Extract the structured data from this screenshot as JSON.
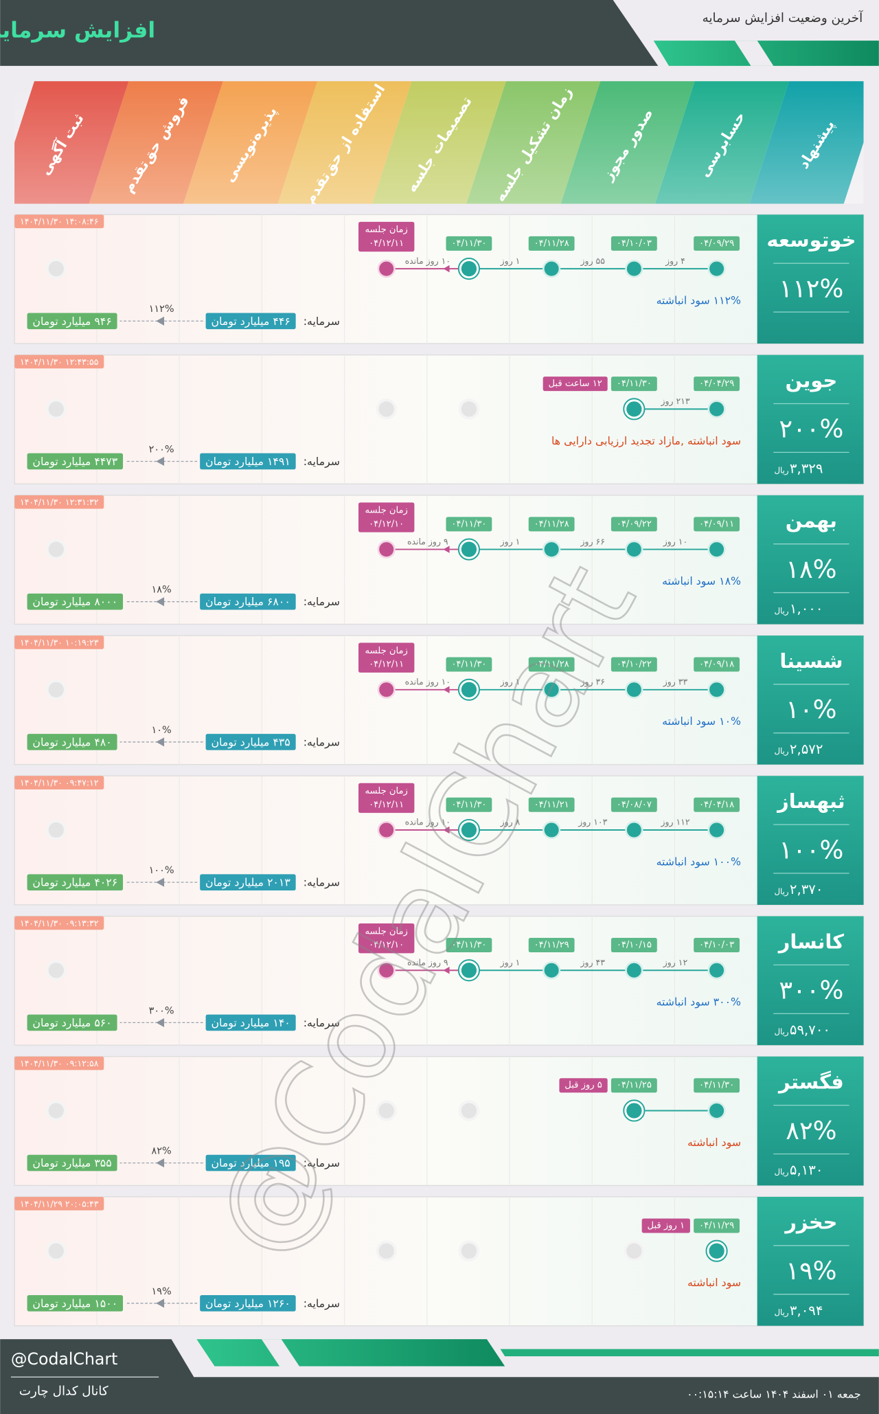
{
  "header": {
    "title": "افزایش سرمایه",
    "subtitle": "آخرین وضعیت افزایش سرمایه"
  },
  "stages": [
    "پیشنهاد",
    "حسابرسی",
    "صدور مجوز",
    "زمان تشکیل جلسه",
    "تصمیمات جلسه",
    "استفاده از حق‌تقدم",
    "پذیره‌نویسی",
    "فروش حق‌تقدم",
    "ثبت آگهی"
  ],
  "capital_label": "سرمایه:",
  "meeting_label": "زمان جلسه",
  "currency": "ریال",
  "rows": [
    {
      "name": "خوتوسعه",
      "percent": "۱۱۲%",
      "timestamp": "۱۴۰۴/۱۱/۳۰ ۱۴:۰۸:۴۶",
      "dates": [
        "۰۴/۰۹/۲۹",
        "۰۴/۱۰/۰۳",
        "۰۴/۱۱/۲۸",
        "۰۴/۱۱/۳۰"
      ],
      "gaps": [
        "۴ روز",
        "۵۵ روز",
        "۱ روز",
        "۱۰ روز مانده"
      ],
      "meeting_date": "۰۴/۱۲/۱۱",
      "note": "۱۱۲% سود انباشته",
      "note_color": "#1f6fc4",
      "capital_from": "۴۴۶ میلیارد تومان",
      "capital_to": "۹۴۶ میلیارد تومان",
      "change": "۱۱۲%"
    },
    {
      "name": "جوین",
      "percent": "۲۰۰%",
      "price": "۳,۳۲۹",
      "timestamp": "۱۴۰۴/۱۱/۳۰ ۱۲:۴۳:۵۵",
      "dates": [
        "۰۴/۰۴/۲۹",
        "۰۴/۱۱/۳۰"
      ],
      "gaps": [
        "۲۱۳ روز"
      ],
      "ago": "۱۲ ساعت قبل",
      "note": "سود انباشته ,مازاد تجدید ارزیابی دارایی ها",
      "note_color": "#d8471c",
      "capital_from": "۱۴۹۱ میلیارد تومان",
      "capital_to": "۴۴۷۳ میلیارد تومان",
      "change": "۲۰۰%"
    },
    {
      "name": "بهمن",
      "percent": "۱۸%",
      "price": "۱,۰۰۰",
      "timestamp": "۱۴۰۴/۱۱/۳۰ ۱۲:۳۱:۳۲",
      "dates": [
        "۰۴/۰۹/۱۱",
        "۰۴/۰۹/۲۲",
        "۰۴/۱۱/۲۸",
        "۰۴/۱۱/۳۰"
      ],
      "gaps": [
        "۱۰ روز",
        "۶۶ روز",
        "۱ روز",
        "۹ روز مانده"
      ],
      "meeting_date": "۰۴/۱۲/۱۰",
      "note": "۱۸% سود انباشته",
      "note_color": "#1f6fc4",
      "capital_from": "۶۸۰۰ میلیارد تومان",
      "capital_to": "۸۰۰۰ میلیارد تومان",
      "change": "۱۸%"
    },
    {
      "name": "شسینا",
      "percent": "۱۰%",
      "price": "۲,۵۷۲",
      "timestamp": "۱۴۰۴/۱۱/۳۰ ۱۰:۱۹:۲۳",
      "dates": [
        "۰۴/۰۹/۱۸",
        "۰۴/۱۰/۲۲",
        "۰۴/۱۱/۲۸",
        "۰۴/۱۱/۳۰"
      ],
      "gaps": [
        "۳۳ روز",
        "۳۶ روز",
        "۱ روز",
        "۱۰ روز مانده"
      ],
      "meeting_date": "۰۴/۱۲/۱۱",
      "note": "۱۰% سود انباشته",
      "note_color": "#1f6fc4",
      "capital_from": "۴۳۵ میلیارد تومان",
      "capital_to": "۴۸۰ میلیارد تومان",
      "change": "۱۰%"
    },
    {
      "name": "ثبهساز",
      "percent": "۱۰۰%",
      "price": "۲,۳۷۰",
      "timestamp": "۱۴۰۴/۱۱/۳۰ ۰۹:۴۷:۱۲",
      "dates": [
        "۰۴/۰۴/۱۸",
        "۰۴/۰۸/۰۷",
        "۰۴/۱۱/۲۱",
        "۰۴/۱۱/۳۰"
      ],
      "gaps": [
        "۱۱۲ روز",
        "۱۰۳ روز",
        "۸ روز",
        "۱۰ روز مانده"
      ],
      "meeting_date": "۰۴/۱۲/۱۱",
      "note": "۱۰۰% سود انباشته",
      "note_color": "#1f6fc4",
      "capital_from": "۲۰۱۳ میلیارد تومان",
      "capital_to": "۴۰۲۶ میلیارد تومان",
      "change": "۱۰۰%"
    },
    {
      "name": "کانسار",
      "percent": "۳۰۰%",
      "price": "۵۹,۷۰۰",
      "timestamp": "۱۴۰۴/۱۱/۳۰ ۰۹:۱۳:۳۲",
      "dates": [
        "۰۴/۱۰/۰۳",
        "۰۴/۱۰/۱۵",
        "۰۴/۱۱/۲۹",
        "۰۴/۱۱/۳۰"
      ],
      "gaps": [
        "۱۲ روز",
        "۴۳ روز",
        "۱ روز",
        "۹ روز مانده"
      ],
      "meeting_date": "۰۴/۱۲/۱۰",
      "note": "۳۰۰% سود انباشته",
      "note_color": "#1f6fc4",
      "capital_from": "۱۴۰ میلیارد تومان",
      "capital_to": "۵۶۰ میلیارد تومان",
      "change": "۳۰۰%"
    },
    {
      "name": "فگستر",
      "percent": "۸۲%",
      "price": "۵,۱۳۰",
      "timestamp": "۱۴۰۴/۱۱/۳۰ ۰۹:۱۲:۵۸",
      "dates": [
        "۰۴/۱۱/۳۰",
        "۰۴/۱۱/۲۵"
      ],
      "gaps": [],
      "ago": "۵ روز قبل",
      "note": "سود انباشته",
      "note_color": "#d8471c",
      "capital_from": "۱۹۵ میلیارد تومان",
      "capital_to": "۳۵۵ میلیارد تومان",
      "change": "۸۲%"
    },
    {
      "name": "حخزر",
      "percent": "۱۹%",
      "price": "۳,۰۹۴",
      "timestamp": "۱۴۰۴/۱۱/۲۹ ۲۰:۰۵:۴۳",
      "dates": [
        "۰۴/۱۱/۲۹"
      ],
      "gaps": [],
      "ago": "۱ روز قبل",
      "note": "سود انباشته",
      "note_color": "#d8471c",
      "capital_from": "۱۲۶۰ میلیارد تومان",
      "capital_to": "۱۵۰۰ میلیارد تومان",
      "change": "۱۹%"
    }
  ],
  "watermark": "@CodalChart",
  "footer": {
    "handle": "@CodalChart",
    "channel": "کانال کدال چارت",
    "date": "جمعه ۰۱ اسفند ۱۴۰۴ ساعت ۰۰:۱۵:۱۴"
  }
}
